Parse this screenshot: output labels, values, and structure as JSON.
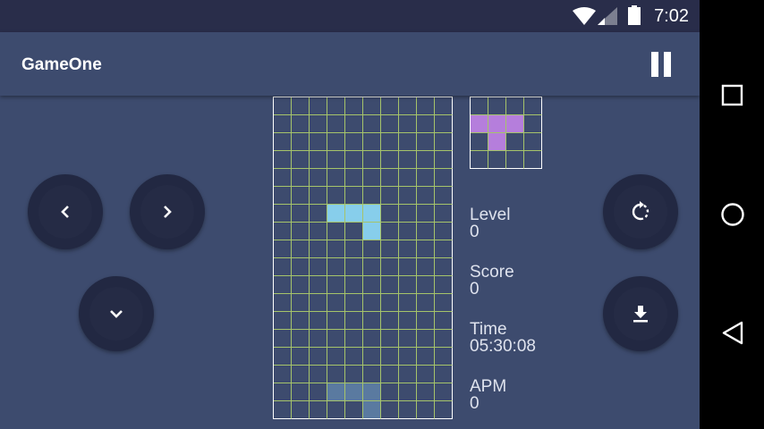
{
  "status_bar": {
    "time": "7:02",
    "icons": [
      "wifi-icon",
      "signal-icon",
      "battery-icon"
    ]
  },
  "app_bar": {
    "title": "GameOne",
    "pause_icon": "pause-icon"
  },
  "board": {
    "columns": 10,
    "rows": 18,
    "active_piece": {
      "color": "#87ceeb",
      "cells": [
        [
          3,
          6
        ],
        [
          4,
          6
        ],
        [
          5,
          6
        ],
        [
          5,
          7
        ]
      ]
    },
    "ghost_piece": {
      "color": "#5a7aa0",
      "cells": [
        [
          3,
          16
        ],
        [
          4,
          16
        ],
        [
          5,
          16
        ],
        [
          5,
          17
        ]
      ]
    }
  },
  "next_piece": {
    "columns": 4,
    "rows": 4,
    "color": "#b57edc",
    "cells": [
      [
        0,
        1
      ],
      [
        1,
        1
      ],
      [
        2,
        1
      ],
      [
        1,
        2
      ]
    ]
  },
  "stats": [
    {
      "label": "Level",
      "value": "0"
    },
    {
      "label": "Score",
      "value": "0"
    },
    {
      "label": "Time",
      "value": "05:30:08"
    },
    {
      "label": "APM",
      "value": "0"
    }
  ],
  "controls": [
    "move-left",
    "move-right",
    "soft-drop",
    "rotate",
    "hard-drop"
  ],
  "colors": {
    "background": "#3d4b6e",
    "grid_line": "#a6c46a",
    "status_bar": "#292d4a"
  }
}
